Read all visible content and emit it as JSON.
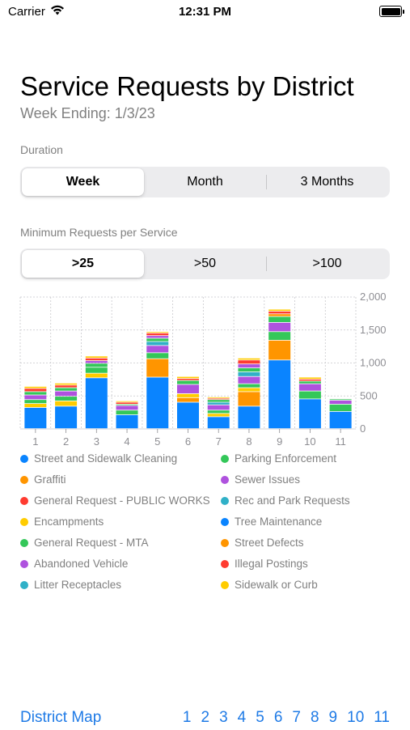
{
  "status": {
    "carrier": "Carrier",
    "time": "12:31 PM"
  },
  "header": {
    "title": "Service Requests by District",
    "subtitle": "Week Ending: 1/3/23"
  },
  "duration": {
    "label": "Duration",
    "options": [
      "Week",
      "Month",
      "3 Months"
    ],
    "selected": "Week"
  },
  "minimum": {
    "label": "Minimum Requests per Service",
    "options": [
      ">25",
      ">50",
      ">100"
    ],
    "selected": ">25"
  },
  "chart_data": {
    "type": "bar",
    "stacked": true,
    "categories": [
      "1",
      "2",
      "3",
      "4",
      "5",
      "6",
      "7",
      "8",
      "9",
      "10",
      "11"
    ],
    "y_ticks": [
      "2,000",
      "1,500",
      "1,000",
      "500",
      "0"
    ],
    "ylim": [
      0,
      2000
    ],
    "grid": true,
    "series": [
      {
        "name": "Street and Sidewalk Cleaning",
        "color": "#0a84ff",
        "values": [
          320,
          340,
          770,
          210,
          780,
          400,
          180,
          340,
          1040,
          450,
          260
        ]
      },
      {
        "name": "Graffiti",
        "color": "#ff9500",
        "values": [
          0,
          0,
          0,
          0,
          280,
          70,
          0,
          220,
          300,
          0,
          0
        ]
      },
      {
        "name": "Encampments",
        "color": "#ffcc00",
        "values": [
          60,
          80,
          70,
          0,
          0,
          60,
          50,
          60,
          0,
          0,
          0
        ]
      },
      {
        "name": "General Request - MTA",
        "color": "#34c759",
        "values": [
          60,
          70,
          90,
          70,
          90,
          0,
          50,
          60,
          130,
          120,
          110
        ]
      },
      {
        "name": "Abandoned Vehicle",
        "color": "#af52de",
        "values": [
          70,
          80,
          0,
          70,
          110,
          140,
          80,
          110,
          140,
          110,
          60
        ]
      },
      {
        "name": "Litter Receptacles",
        "color": "#30b0c7",
        "values": [
          0,
          0,
          0,
          0,
          60,
          0,
          40,
          70,
          0,
          0,
          0
        ]
      },
      {
        "name": "Parking Enforcement",
        "color": "#34c759",
        "values": [
          50,
          50,
          60,
          20,
          50,
          60,
          40,
          60,
          90,
          40,
          20
        ]
      },
      {
        "name": "Sewer Issues",
        "color": "#af52de",
        "values": [
          0,
          0,
          40,
          0,
          40,
          0,
          0,
          60,
          0,
          0,
          0
        ]
      },
      {
        "name": "Rec and Park Requests",
        "color": "#30b0c7",
        "values": [
          0,
          0,
          0,
          0,
          0,
          0,
          0,
          0,
          0,
          0,
          0
        ]
      },
      {
        "name": "Tree Maintenance",
        "color": "#0a84ff",
        "values": [
          0,
          0,
          0,
          0,
          0,
          0,
          0,
          0,
          0,
          0,
          0
        ]
      },
      {
        "name": "Street Defects",
        "color": "#ff9500",
        "values": [
          0,
          0,
          0,
          0,
          0,
          0,
          0,
          0,
          40,
          0,
          0
        ]
      },
      {
        "name": "Illegal Postings",
        "color": "#ff3b30",
        "values": [
          0,
          0,
          0,
          0,
          40,
          0,
          0,
          0,
          40,
          0,
          0
        ]
      },
      {
        "name": "General Request - PUBLIC WORKS",
        "color": "#ff3b30",
        "values": [
          50,
          40,
          40,
          30,
          0,
          30,
          20,
          60,
          0,
          30,
          10
        ]
      },
      {
        "name": "Sidewalk or Curb",
        "color": "#ffcc00",
        "values": [
          30,
          30,
          30,
          20,
          20,
          30,
          20,
          30,
          30,
          30,
          0
        ]
      }
    ]
  },
  "legend": [
    {
      "label": "Street and Sidewalk Cleaning",
      "color": "#0a84ff"
    },
    {
      "label": "Parking Enforcement",
      "color": "#34c759"
    },
    {
      "label": "Graffiti",
      "color": "#ff9500"
    },
    {
      "label": "Sewer Issues",
      "color": "#af52de"
    },
    {
      "label": "General Request - PUBLIC WORKS",
      "color": "#ff3b30"
    },
    {
      "label": "Rec and Park Requests",
      "color": "#30b0c7"
    },
    {
      "label": "Encampments",
      "color": "#ffcc00"
    },
    {
      "label": "Tree Maintenance",
      "color": "#0a84ff"
    },
    {
      "label": "General Request - MTA",
      "color": "#34c759"
    },
    {
      "label": "Street Defects",
      "color": "#ff9500"
    },
    {
      "label": "Abandoned Vehicle",
      "color": "#af52de"
    },
    {
      "label": "Illegal Postings",
      "color": "#ff3b30"
    },
    {
      "label": "Litter Receptacles",
      "color": "#30b0c7"
    },
    {
      "label": "Sidewalk or Curb",
      "color": "#ffcc00"
    }
  ],
  "footer": {
    "district_map": "District Map",
    "districts": [
      "1",
      "2",
      "3",
      "4",
      "5",
      "6",
      "7",
      "8",
      "9",
      "10",
      "11"
    ]
  }
}
